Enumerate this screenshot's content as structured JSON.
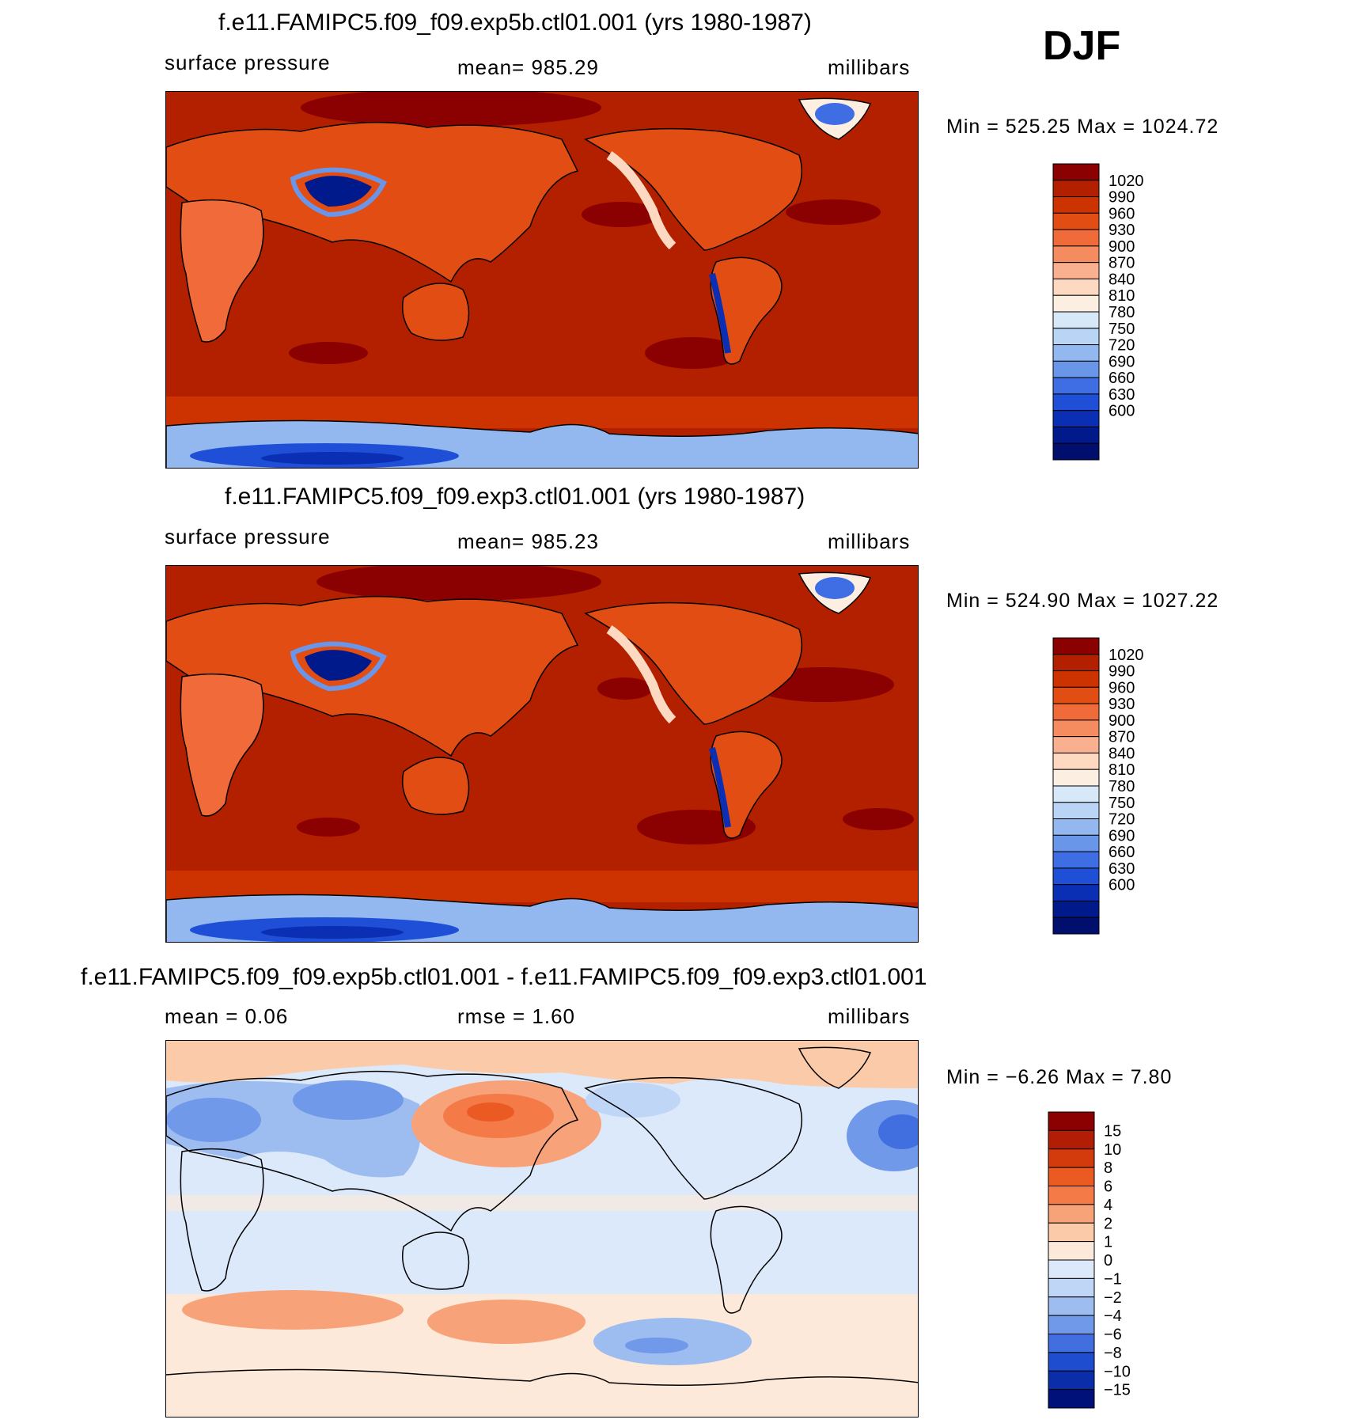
{
  "season": "DJF",
  "chart_data": [
    {
      "type": "heatmap",
      "title": "f.e11.FAMIPC5.f09_f09.exp5b.ctl01.001 (yrs 1980-1987)",
      "left_label": "surface pressure",
      "center_label": "mean= 985.29",
      "right_label": "millibars",
      "min": 525.25,
      "max": 1024.72,
      "minmax_text": "Min  =  525.25  Max  =  1024.72",
      "colorbar_levels": [
        "1020",
        "990",
        "960",
        "930",
        "900",
        "870",
        "840",
        "810",
        "780",
        "750",
        "720",
        "690",
        "660",
        "630",
        "600"
      ]
    },
    {
      "type": "heatmap",
      "title": "f.e11.FAMIPC5.f09_f09.exp3.ctl01.001 (yrs 1980-1987)",
      "left_label": "surface pressure",
      "center_label": "mean= 985.23",
      "right_label": "millibars",
      "min": 524.9,
      "max": 1027.22,
      "minmax_text": "Min  =  524.90  Max  =  1027.22",
      "colorbar_levels": [
        "1020",
        "990",
        "960",
        "930",
        "900",
        "870",
        "840",
        "810",
        "780",
        "750",
        "720",
        "690",
        "660",
        "630",
        "600"
      ]
    },
    {
      "type": "heatmap",
      "title": "f.e11.FAMIPC5.f09_f09.exp5b.ctl01.001 - f.e11.FAMIPC5.f09_f09.exp3.ctl01.001",
      "left_label": "mean =     0.06",
      "center_label": "rmse =     1.60",
      "right_label": "millibars",
      "min": -6.26,
      "max": 7.8,
      "minmax_text": "Min  =    −6.26  Max  =     7.80",
      "colorbar_levels": [
        "15",
        "10",
        "8",
        "6",
        "4",
        "2",
        "1",
        "0",
        "−1",
        "−2",
        "−4",
        "−6",
        "−8",
        "−10",
        "−15"
      ]
    }
  ],
  "colors": {
    "abs_scale": [
      "#8b0000",
      "#b22000",
      "#cc3300",
      "#e24d14",
      "#f06a3a",
      "#f58c60",
      "#f9b08f",
      "#fcd9c0",
      "#fdeee2",
      "#d7e8f8",
      "#b9d4f5",
      "#93b8f0",
      "#6a96ea",
      "#3f6ee4",
      "#1e4fd6",
      "#0a2fb4",
      "#001a8c",
      "#000f6e"
    ],
    "diff_scale": [
      "#8b0000",
      "#b21d05",
      "#d33a0c",
      "#ea5a22",
      "#f47a48",
      "#f8a27a",
      "#fbcaa8",
      "#fde9d9",
      "#dce9fa",
      "#c0d6f6",
      "#9dbcf0",
      "#7199ea",
      "#416fe0",
      "#1e4dd0",
      "#0a2eaa",
      "#00127a"
    ]
  }
}
